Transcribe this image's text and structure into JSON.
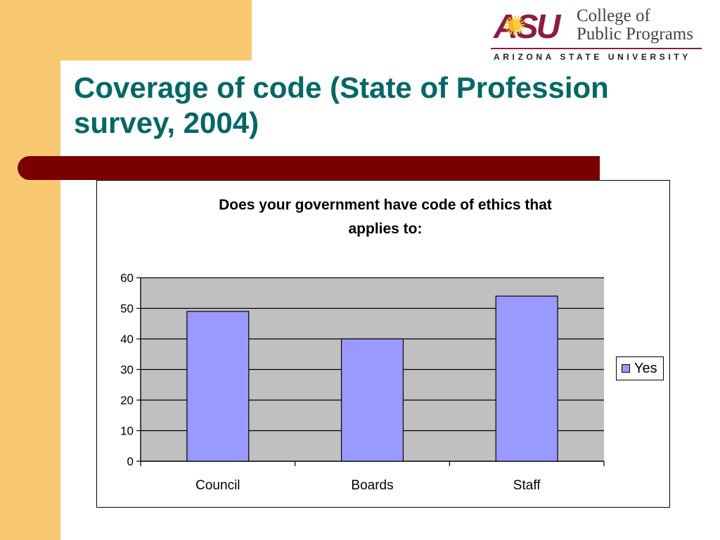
{
  "slide": {
    "title_line1": "Coverage of code (State of Profession",
    "title_line2": "survey, 2004)"
  },
  "logo": {
    "mark": "ASU",
    "name_line1": "College of",
    "name_line2": "Public Programs",
    "university": "ARIZONA STATE UNIVERSITY"
  },
  "colors": {
    "title": "#006666",
    "accent_bar": "#7a0000",
    "background_band": "#f8c971",
    "plot_area": "#c0c0c0",
    "bar_fill": "#9999ff"
  },
  "chart_data": {
    "type": "bar",
    "title_line1": "Does your government have code of ethics that",
    "title_line2": "applies to:",
    "categories": [
      "Council",
      "Boards",
      "Staff"
    ],
    "series": [
      {
        "name": "Yes",
        "values": [
          49,
          40,
          54
        ],
        "color": "#9999ff"
      }
    ],
    "ylim": [
      0,
      60
    ],
    "yticks": [
      0,
      10,
      20,
      30,
      40,
      50,
      60
    ],
    "grid": true,
    "legend_position": "right"
  }
}
